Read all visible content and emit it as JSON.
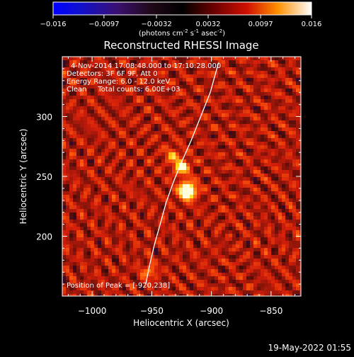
{
  "colorbar": {
    "ticks": [
      "-0.016",
      "-0.0097",
      "-0.0032",
      "0.0032",
      "0.0097",
      "0.016"
    ],
    "label_prefix": "(photons cm",
    "label_exp1": "-2",
    "label_mid1": " s",
    "label_exp2": "-1",
    "label_mid2": " asec",
    "label_exp3": "-2",
    "label_suffix": ")",
    "range": [
      -0.016,
      0.016
    ]
  },
  "chart_data": {
    "type": "heatmap",
    "title": "Reconstructed RHESSI Image",
    "xlabel": "Heliocentric X (arcsec)",
    "ylabel": "Heliocentric Y (arcsec)",
    "xlim": [
      -1025,
      -825
    ],
    "ylim": [
      150,
      350
    ],
    "x_ticks": [
      -1000,
      -950,
      -900,
      -850
    ],
    "x_tick_labels": [
      "−1000",
      "−950",
      "−900",
      "−850"
    ],
    "y_ticks": [
      200,
      250,
      300
    ],
    "y_tick_labels": [
      "200",
      "250",
      "300"
    ],
    "peak": {
      "x": -920,
      "y": 238
    },
    "secondary_sources": [
      {
        "x": -925,
        "y": 258
      },
      {
        "x": -933,
        "y": 268
      },
      {
        "x": -952,
        "y": 170
      }
    ],
    "limb_points": [
      [
        -894,
        345
      ],
      [
        -901,
        320
      ],
      [
        -909,
        300
      ],
      [
        -917,
        280
      ],
      [
        -925,
        262
      ],
      [
        -932,
        245
      ],
      [
        -938,
        228
      ],
      [
        -943,
        210
      ],
      [
        -948,
        192
      ],
      [
        -952,
        175
      ],
      [
        -955,
        160
      ]
    ]
  },
  "annotations": {
    "time_range": "4-Nov-2014 17:08:48.000 to 17:10:28.000",
    "detectors": "Detectors: 3F 6F 9F, Att 0",
    "energy_range": "Energy Range: 6.0 - 12.0 keV",
    "clean": "Clean     Total counts: 6.00E+03",
    "peak_position": "Position of Peak = [-920,238]"
  },
  "footer": {
    "date": "19-May-2022 01:55"
  },
  "colors": {
    "background": "#000000",
    "axes": "#ffffff",
    "limb": "#ffffff"
  }
}
